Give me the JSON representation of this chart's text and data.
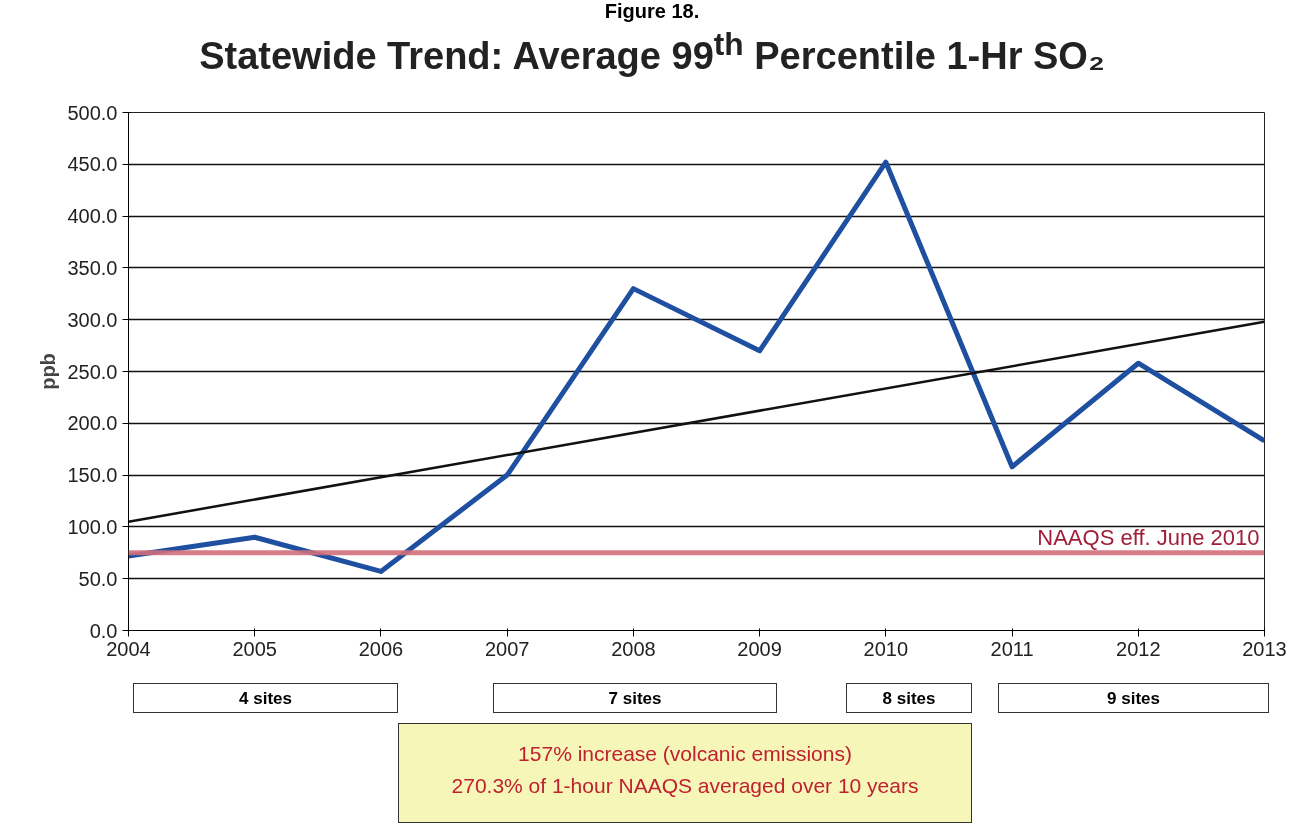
{
  "chart_data": {
    "type": "line",
    "title": "Statewide Trend: Average 99$^{th}$ Percentile 1-Hr SO₂",
    "ylabel": "ppb",
    "x": [
      2004,
      2005,
      2006,
      2007,
      2008,
      2009,
      2010,
      2011,
      2012,
      2013
    ],
    "series": [
      {
        "color": "#1f4fa0",
        "values": [
          72,
          90,
          57,
          150,
          330,
          270,
          452,
          158,
          258,
          183
        ]
      },
      {
        "color": "#111111",
        "x": [
          2004,
          2013
        ],
        "values": [
          105,
          298
        ]
      }
    ],
    "xlim": [
      2004,
      2013
    ],
    "xticks": [
      2004,
      2005,
      2006,
      2007,
      2008,
      2009,
      2010,
      2011,
      2012,
      2013
    ],
    "ylim": [
      0,
      500
    ],
    "yticks": [
      {
        "value": 0,
        "label": "0.0"
      },
      {
        "value": 50,
        "label": "50.0"
      },
      {
        "value": 100,
        "label": "100.0"
      },
      {
        "value": 150,
        "label": "150.0"
      },
      {
        "value": 200,
        "label": "200.0"
      },
      {
        "value": 250,
        "label": "250.0"
      },
      {
        "value": 300,
        "label": "300.0"
      },
      {
        "value": 350,
        "label": "350.0"
      },
      {
        "value": 400,
        "label": "400.0"
      },
      {
        "value": 450,
        "label": "450.0"
      },
      {
        "value": 500,
        "label": "500.0"
      }
    ],
    "ref_lines": [
      {
        "axis": "y",
        "value": 75,
        "label": "NAAQS eff. June 2010",
        "color": "#d0707a"
      }
    ],
    "annotations": [
      "Figure 18.",
      "4 sites",
      "7 sites",
      "8 sites",
      "9 sites",
      "157% increase (volcanic emissions)",
      "270.3% of 1-hour NAAQS averaged over 10 years"
    ],
    "grid": "y",
    "marker": "none",
    "line_style": "solid"
  }
}
